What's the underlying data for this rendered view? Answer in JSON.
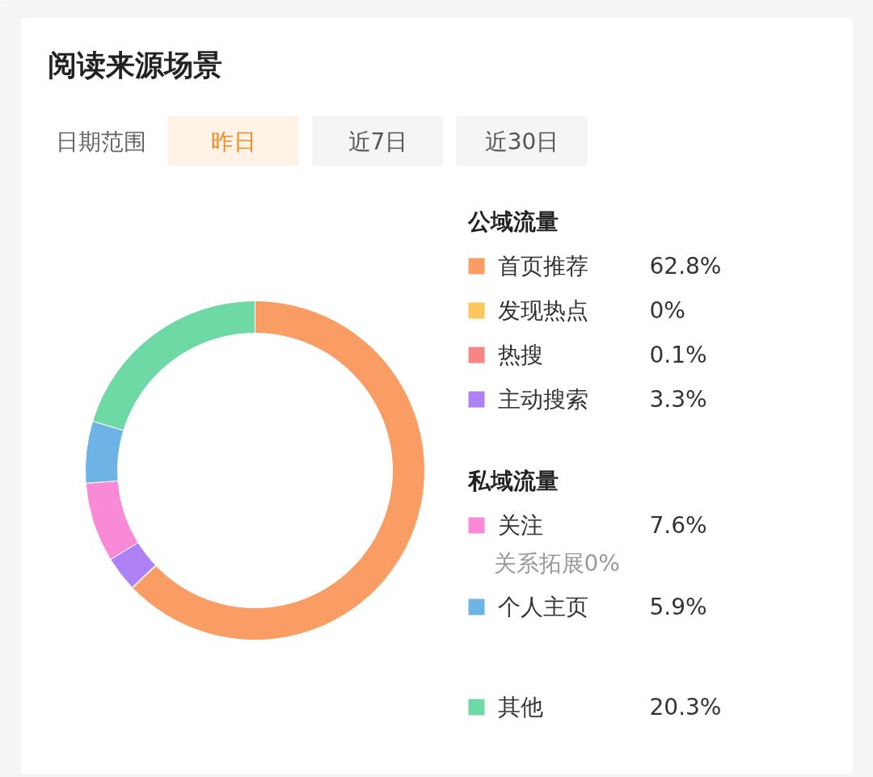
{
  "chart_data": {
    "type": "donut",
    "title": "阅读来源场景",
    "categories": [
      "首页推荐",
      "发现热点",
      "热搜",
      "主动搜索",
      "关注",
      "个人主页",
      "其他"
    ],
    "values": [
      62.8,
      0,
      0.1,
      3.3,
      7.6,
      5.9,
      20.3
    ],
    "colors": [
      "#fa9d64",
      "#fcc75c",
      "#f68585",
      "#ad80f4",
      "#f98ad8",
      "#6db3e6",
      "#6fd9a6"
    ],
    "value_labels": [
      "62.8%",
      "0%",
      "0.1%",
      "3.3%",
      "7.6%",
      "5.9%",
      "20.3%"
    ],
    "legend": "right",
    "annotations": [
      "日期范围",
      "昨日",
      "近7日",
      "近30日",
      "公域流量",
      "私域流量",
      "关系拓展0%"
    ]
  }
}
